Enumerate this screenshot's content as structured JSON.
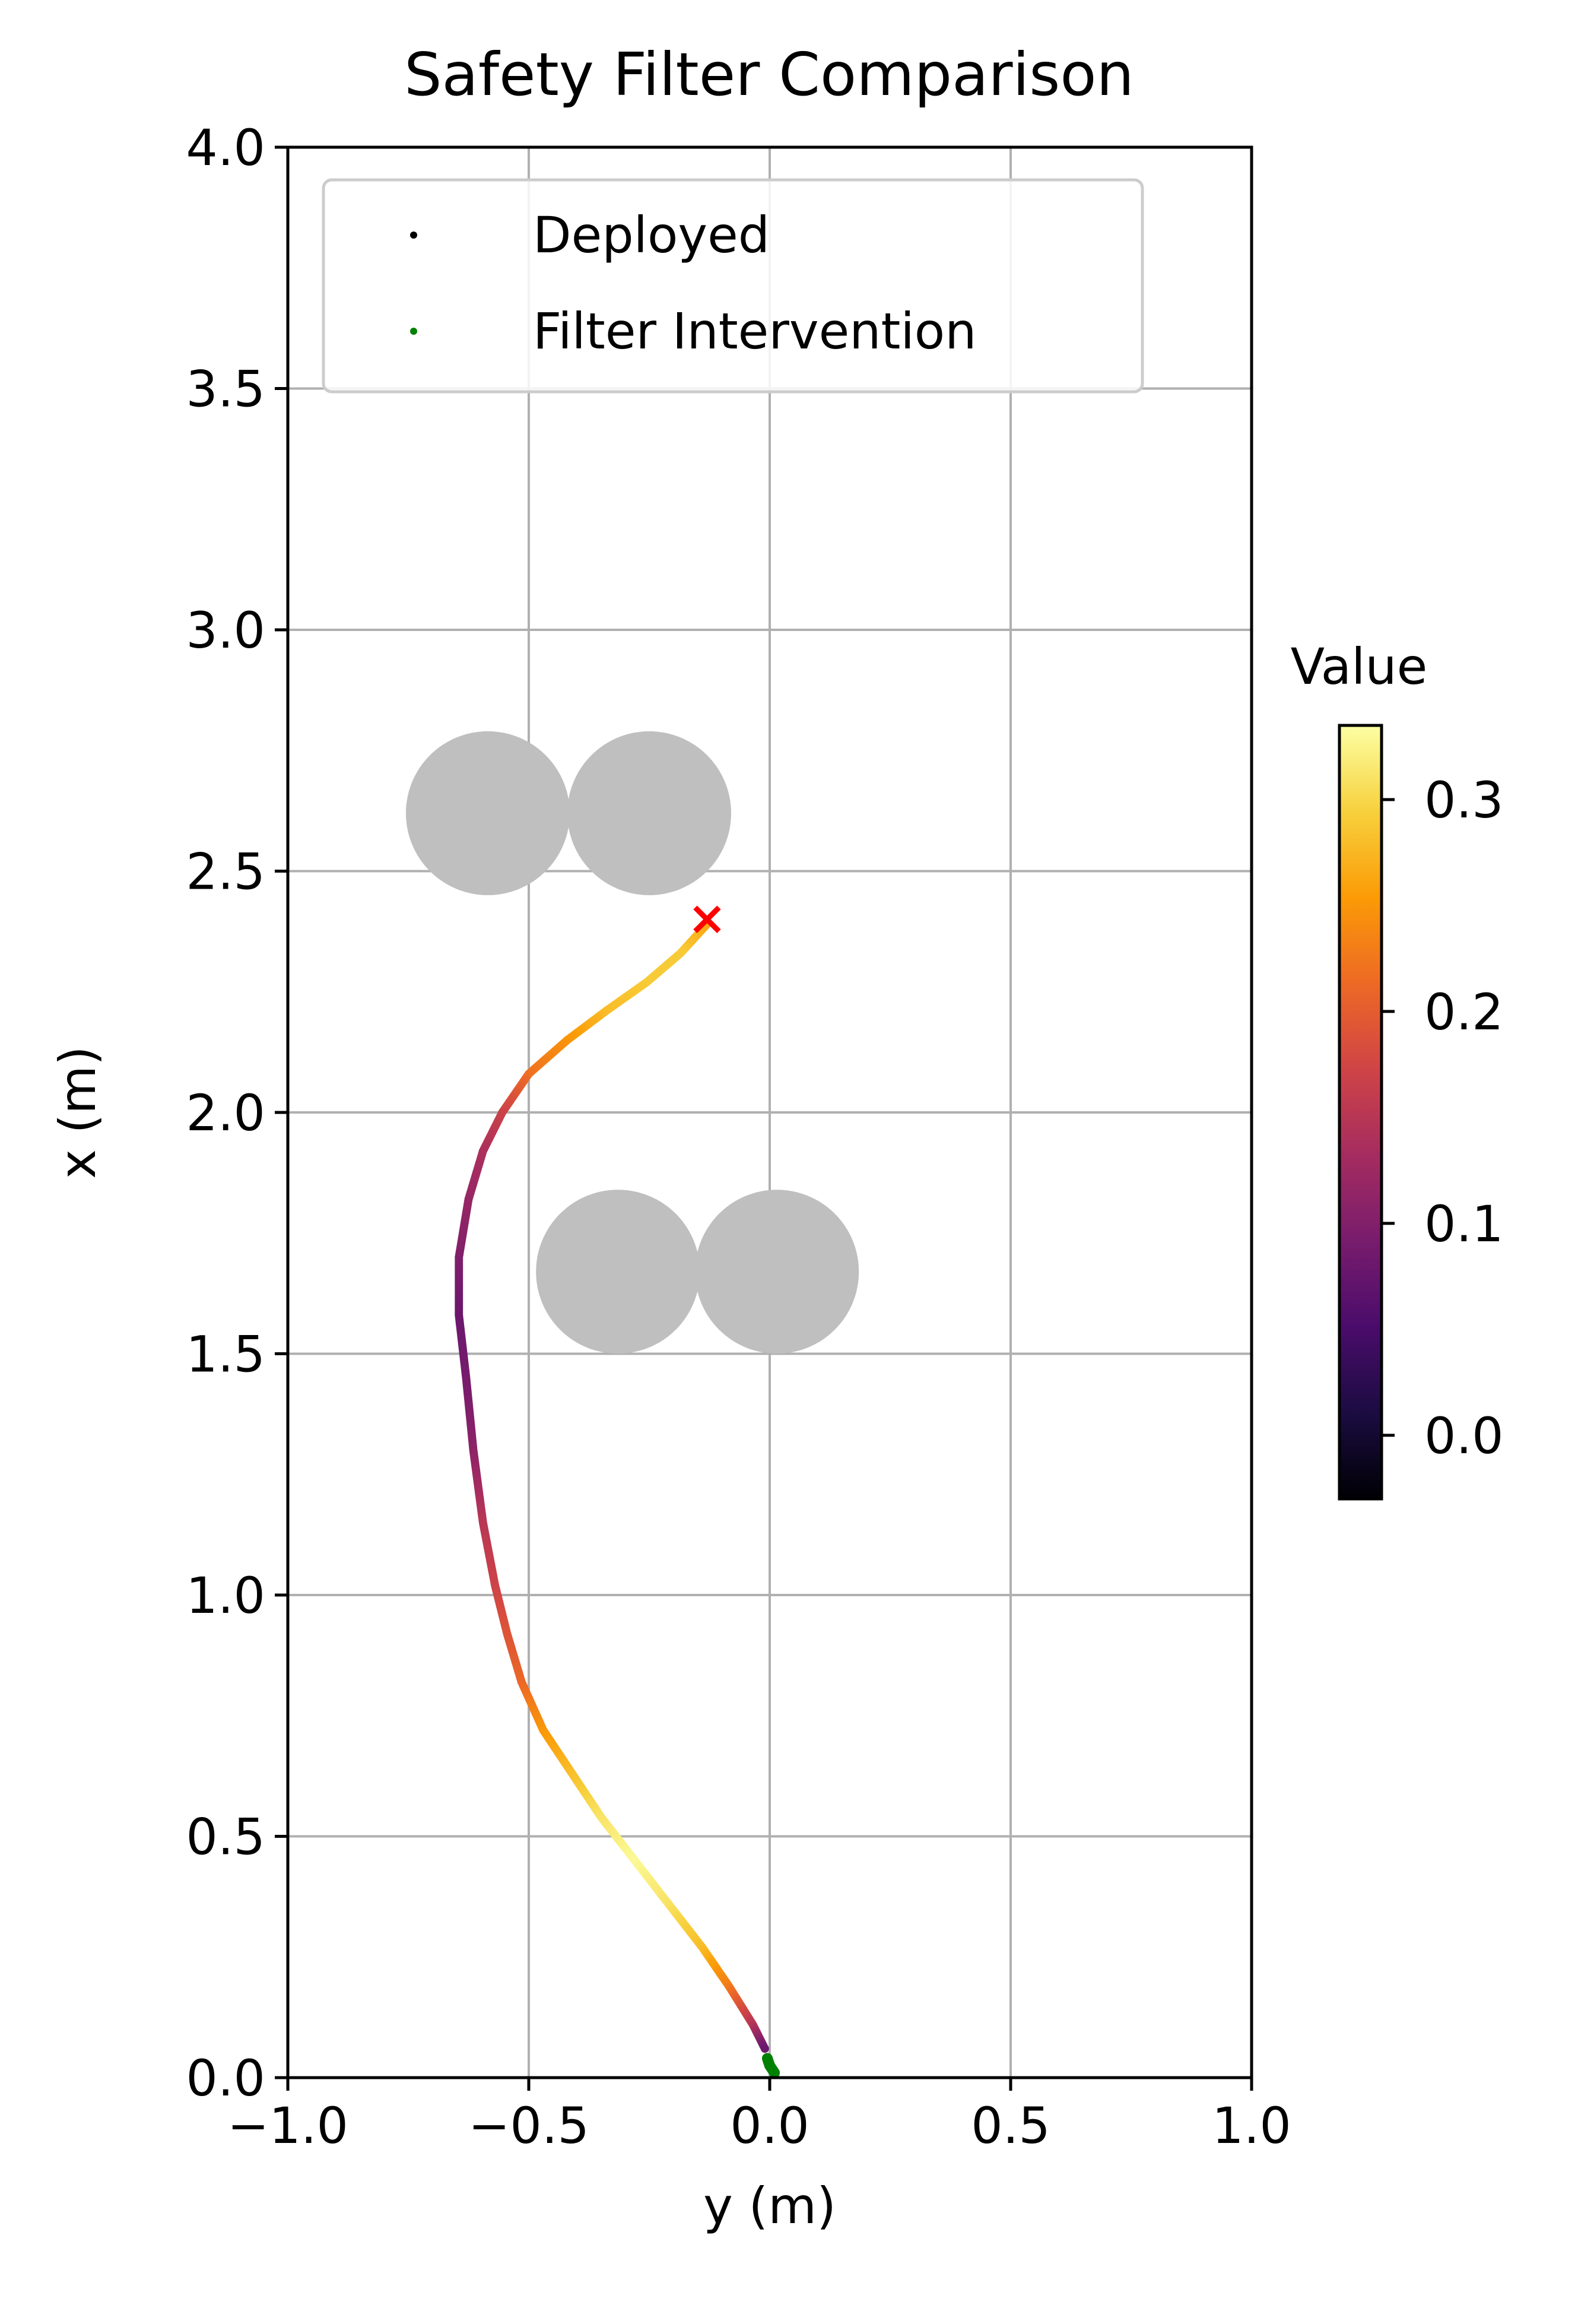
{
  "chart_data": {
    "type": "scatter",
    "title": "Safety Filter Comparison",
    "xlabel": "y (m)",
    "ylabel": "x (m)",
    "xlim": [
      -1.0,
      1.0
    ],
    "ylim": [
      0.0,
      4.0
    ],
    "x_ticks": [
      -1.0,
      -0.5,
      0.0,
      0.5,
      1.0
    ],
    "x_tick_labels": [
      "−1.0",
      "−0.5",
      "0.0",
      "0.5",
      "1.0"
    ],
    "y_ticks": [
      0.0,
      0.5,
      1.0,
      1.5,
      2.0,
      2.5,
      3.0,
      3.5,
      4.0
    ],
    "y_tick_labels": [
      "0.0",
      "0.5",
      "1.0",
      "1.5",
      "2.0",
      "2.5",
      "3.0",
      "3.5",
      "4.0"
    ],
    "grid": true,
    "legend": {
      "placement": "upper-left",
      "entries": [
        {
          "label": "Deployed",
          "color": "#000000"
        },
        {
          "label": "Filter Intervention",
          "color": "#008000"
        }
      ]
    },
    "obstacles": {
      "color": "#bfbfbf",
      "radius": 0.17,
      "centers": [
        {
          "y": -0.585,
          "x": 2.62
        },
        {
          "y": -0.25,
          "x": 2.62
        },
        {
          "y": -0.315,
          "x": 1.67
        },
        {
          "y": 0.015,
          "x": 1.67
        }
      ]
    },
    "goal_marker": {
      "y": -0.13,
      "x": 2.4,
      "color": "#ff0000",
      "symbol": "x"
    },
    "trajectory": {
      "colormap": "inferno",
      "points": [
        {
          "y": -0.13,
          "x": 2.39,
          "v": 0.26
        },
        {
          "y": -0.185,
          "x": 2.33,
          "v": 0.29
        },
        {
          "y": -0.255,
          "x": 2.27,
          "v": 0.29
        },
        {
          "y": -0.34,
          "x": 2.21,
          "v": 0.28
        },
        {
          "y": -0.42,
          "x": 2.15,
          "v": 0.25
        },
        {
          "y": -0.5,
          "x": 2.08,
          "v": 0.22
        },
        {
          "y": -0.555,
          "x": 2.0,
          "v": 0.17
        },
        {
          "y": -0.595,
          "x": 1.92,
          "v": 0.14
        },
        {
          "y": -0.625,
          "x": 1.82,
          "v": 0.12
        },
        {
          "y": -0.645,
          "x": 1.7,
          "v": 0.1
        },
        {
          "y": -0.645,
          "x": 1.58,
          "v": 0.08
        },
        {
          "y": -0.63,
          "x": 1.45,
          "v": 0.09
        },
        {
          "y": -0.615,
          "x": 1.3,
          "v": 0.11
        },
        {
          "y": -0.595,
          "x": 1.15,
          "v": 0.15
        },
        {
          "y": -0.57,
          "x": 1.02,
          "v": 0.17
        },
        {
          "y": -0.545,
          "x": 0.92,
          "v": 0.19
        },
        {
          "y": -0.515,
          "x": 0.82,
          "v": 0.21
        },
        {
          "y": -0.47,
          "x": 0.72,
          "v": 0.25
        },
        {
          "y": -0.41,
          "x": 0.63,
          "v": 0.28
        },
        {
          "y": -0.35,
          "x": 0.54,
          "v": 0.31
        },
        {
          "y": -0.28,
          "x": 0.45,
          "v": 0.33
        },
        {
          "y": -0.21,
          "x": 0.36,
          "v": 0.31
        },
        {
          "y": -0.14,
          "x": 0.27,
          "v": 0.28
        },
        {
          "y": -0.085,
          "x": 0.19,
          "v": 0.23
        },
        {
          "y": -0.035,
          "x": 0.11,
          "v": 0.15
        },
        {
          "y": -0.01,
          "x": 0.06,
          "v": 0.08
        }
      ],
      "intervention_points": [
        {
          "y": -0.005,
          "x": 0.04
        },
        {
          "y": 0.0,
          "x": 0.025
        },
        {
          "y": 0.01,
          "x": 0.01
        }
      ]
    },
    "colorbar": {
      "label": "Value",
      "range": [
        -0.03,
        0.335
      ],
      "ticks": [
        0.0,
        0.1,
        0.2,
        0.3
      ],
      "tick_labels": [
        "0.0",
        "0.1",
        "0.2",
        "0.3"
      ],
      "colors": [
        "#000004",
        "#1b0c41",
        "#4a0c6b",
        "#781c6d",
        "#a52c60",
        "#cf4446",
        "#ed6925",
        "#fb9b06",
        "#f7d13d",
        "#fcffa4"
      ]
    }
  }
}
